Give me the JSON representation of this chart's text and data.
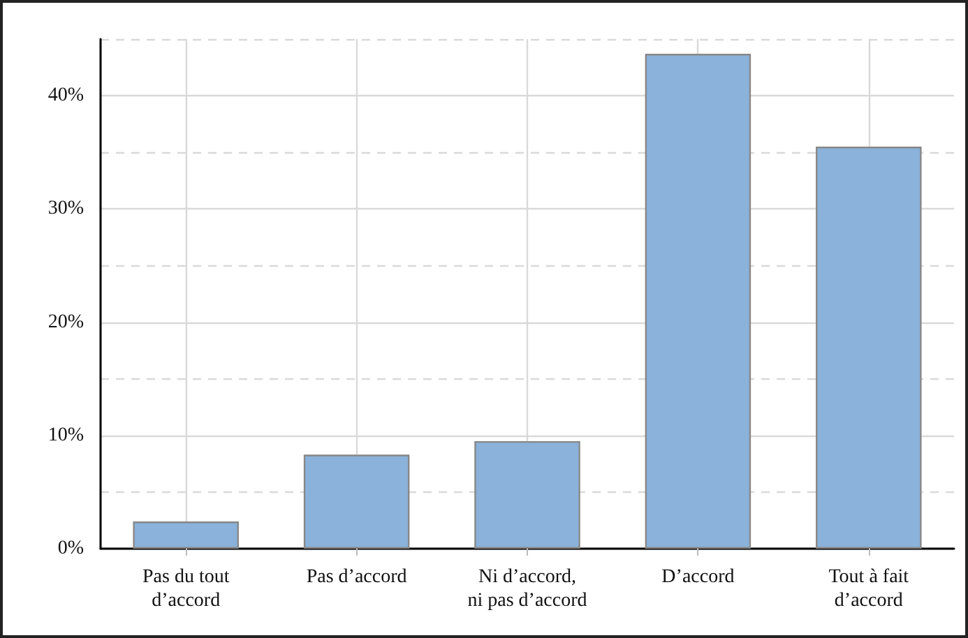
{
  "chart_data": {
    "type": "bar",
    "categories": [
      "Pas du tout\nd’accord",
      "Pas d’accord",
      "Ni d’accord,\nni pas d’accord",
      "D’accord",
      "Tout à fait\nd’accord"
    ],
    "values": [
      2.4,
      8.3,
      9.5,
      43.7,
      35.5
    ],
    "color": "#8ab2da",
    "ylim": [
      0,
      45
    ],
    "yticks": [
      {
        "value": 0,
        "label": "0%"
      },
      {
        "value": 5,
        "label": null
      },
      {
        "value": 10,
        "label": "10%"
      },
      {
        "value": 15,
        "label": null
      },
      {
        "value": 20,
        "label": "20%"
      },
      {
        "value": 25,
        "label": null
      },
      {
        "value": 30,
        "label": "30%"
      },
      {
        "value": 35,
        "label": null
      },
      {
        "value": 40,
        "label": "40%"
      },
      {
        "value": 45,
        "label": null
      }
    ],
    "grid": true
  }
}
